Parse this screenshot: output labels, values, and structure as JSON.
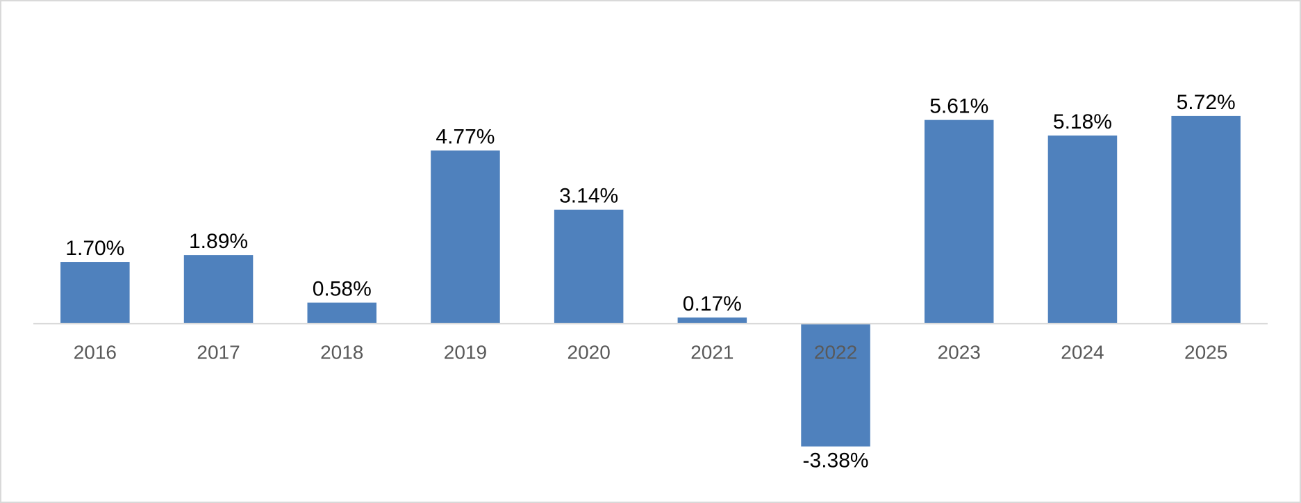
{
  "chart_data": {
    "type": "bar",
    "categories": [
      "2016",
      "2017",
      "2018",
      "2019",
      "2020",
      "2021",
      "2022",
      "2023",
      "2024",
      "2025"
    ],
    "values": [
      1.7,
      1.89,
      0.58,
      4.77,
      3.14,
      0.17,
      -3.38,
      5.61,
      5.18,
      5.72
    ],
    "value_labels": [
      "1.70%",
      "1.89%",
      "0.58%",
      "4.77%",
      "3.14%",
      "0.17%",
      "-3.38%",
      "5.61%",
      "5.18%",
      "5.72%"
    ],
    "color": "#4f81bd",
    "ylim": [
      -4,
      7
    ]
  }
}
